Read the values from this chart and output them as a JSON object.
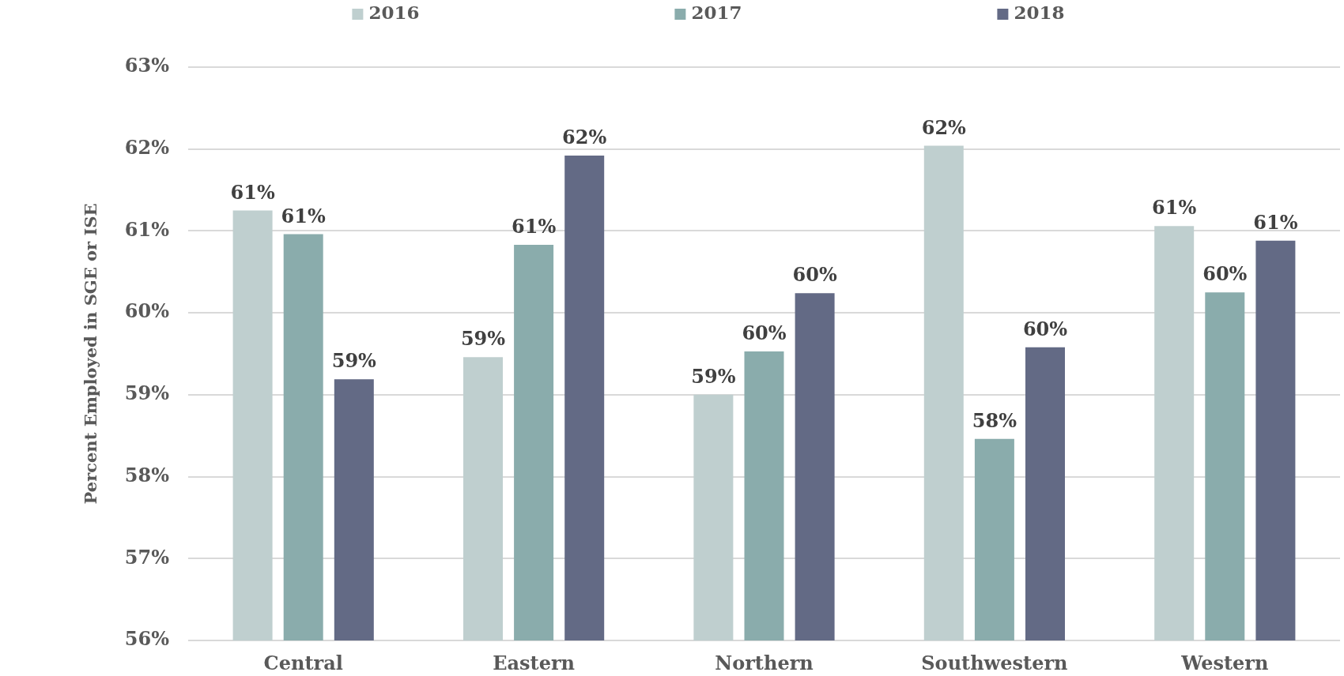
{
  "chart_data": {
    "type": "bar",
    "ylabel": "Percent Employed in SGE or ISE",
    "categories": [
      "Central",
      "Eastern",
      "Northern",
      "Southwestern",
      "Western"
    ],
    "series": [
      {
        "name": "2016",
        "color": "#bfcfcf",
        "values": [
          61.25,
          59.46,
          59.0,
          62.04,
          61.06
        ],
        "value_labels": [
          "61%",
          "59%",
          "59%",
          "62%",
          "61%"
        ]
      },
      {
        "name": "2017",
        "color": "#8aacac",
        "values": [
          60.96,
          60.83,
          59.53,
          58.46,
          60.25
        ],
        "value_labels": [
          "61%",
          "61%",
          "60%",
          "58%",
          "60%"
        ]
      },
      {
        "name": "2018",
        "color": "#636a85",
        "values": [
          59.19,
          61.92,
          60.24,
          59.58,
          60.88
        ],
        "value_labels": [
          "59%",
          "62%",
          "60%",
          "60%",
          "61%"
        ]
      }
    ],
    "ylim": [
      56,
      63
    ],
    "yticks": [
      {
        "value": 56,
        "label": "56%"
      },
      {
        "value": 57,
        "label": "57%"
      },
      {
        "value": 58,
        "label": "58%"
      },
      {
        "value": 59,
        "label": "59%"
      },
      {
        "value": 60,
        "label": "60%"
      },
      {
        "value": 61,
        "label": "61%"
      },
      {
        "value": 62,
        "label": "62%"
      },
      {
        "value": 63,
        "label": "63%"
      }
    ],
    "grid": "y",
    "legend": "top"
  }
}
